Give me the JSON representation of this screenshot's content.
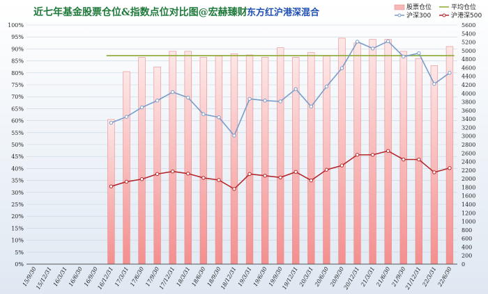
{
  "chart_data": {
    "type": "bar",
    "title": "近七年基金股票仓位&指数点位对比图@宏赫臻财",
    "subtitle": "东方红沪港深混合",
    "categories": [
      "15/9/30",
      "15/12/31",
      "16/3/31",
      "16/6/30",
      "16/9/30",
      "16/12/31",
      "17/3/31",
      "17/6/30",
      "17/9/30",
      "17/12/31",
      "18/3/31",
      "18/6/30",
      "18/9/30",
      "18/12/31",
      "19/3/31",
      "19/6/30",
      "19/9/30",
      "19/12/31",
      "20/3/31",
      "20/6/30",
      "20/9/30",
      "20/12/31",
      "21/3/31",
      "21/6/30",
      "21/9/30",
      "21/12/31",
      "22/3/31",
      "22/6/30"
    ],
    "left_axis": {
      "ylim": [
        0,
        100
      ],
      "step": 5,
      "unit": "%"
    },
    "right_axis": {
      "ylim": [
        0,
        5600
      ],
      "step": 200
    },
    "series": [
      {
        "name": "股票仓位",
        "kind": "bar",
        "axis": "left",
        "color": "#f4a6a6",
        "values": [
          null,
          null,
          null,
          null,
          null,
          60.5,
          80.5,
          86.5,
          82.5,
          89,
          89,
          86.5,
          87,
          88,
          87.5,
          86.5,
          90.5,
          86.5,
          88.5,
          87,
          94.5,
          92.5,
          94,
          94,
          89,
          86,
          83,
          91
        ]
      },
      {
        "name": "平均仓位",
        "kind": "line",
        "axis": "left",
        "color": "#8aa830",
        "values": [
          null,
          null,
          null,
          null,
          null,
          87.2,
          87.2,
          87.2,
          87.2,
          87.2,
          87.2,
          87.2,
          87.2,
          87.2,
          87.2,
          87.2,
          87.2,
          87.2,
          87.2,
          87.2,
          87.2,
          87.2,
          87.2,
          87.2,
          87.2,
          87.2,
          87.2,
          87.2
        ]
      },
      {
        "name": "沪深300",
        "kind": "line",
        "axis": "right",
        "color": "#7a9cc8",
        "values": [
          null,
          null,
          null,
          null,
          null,
          3310,
          3450,
          3670,
          3830,
          4030,
          3900,
          3510,
          3440,
          3010,
          3870,
          3830,
          3810,
          4100,
          3690,
          4160,
          4590,
          5210,
          5050,
          5220,
          4860,
          4940,
          4220,
          4480
        ]
      },
      {
        "name": "沪港深500",
        "kind": "line",
        "axis": "right",
        "color": "#b5262a",
        "values": [
          null,
          null,
          null,
          null,
          null,
          1820,
          1930,
          1990,
          2110,
          2170,
          2120,
          2020,
          1970,
          1760,
          2110,
          2070,
          2030,
          2160,
          1960,
          2210,
          2310,
          2560,
          2560,
          2650,
          2450,
          2450,
          2150,
          2250
        ]
      }
    ],
    "legend": [
      "股票仓位",
      "平均仓位",
      "沪深300",
      "沪港深500"
    ],
    "legend_position": "top-right",
    "grid": true
  }
}
